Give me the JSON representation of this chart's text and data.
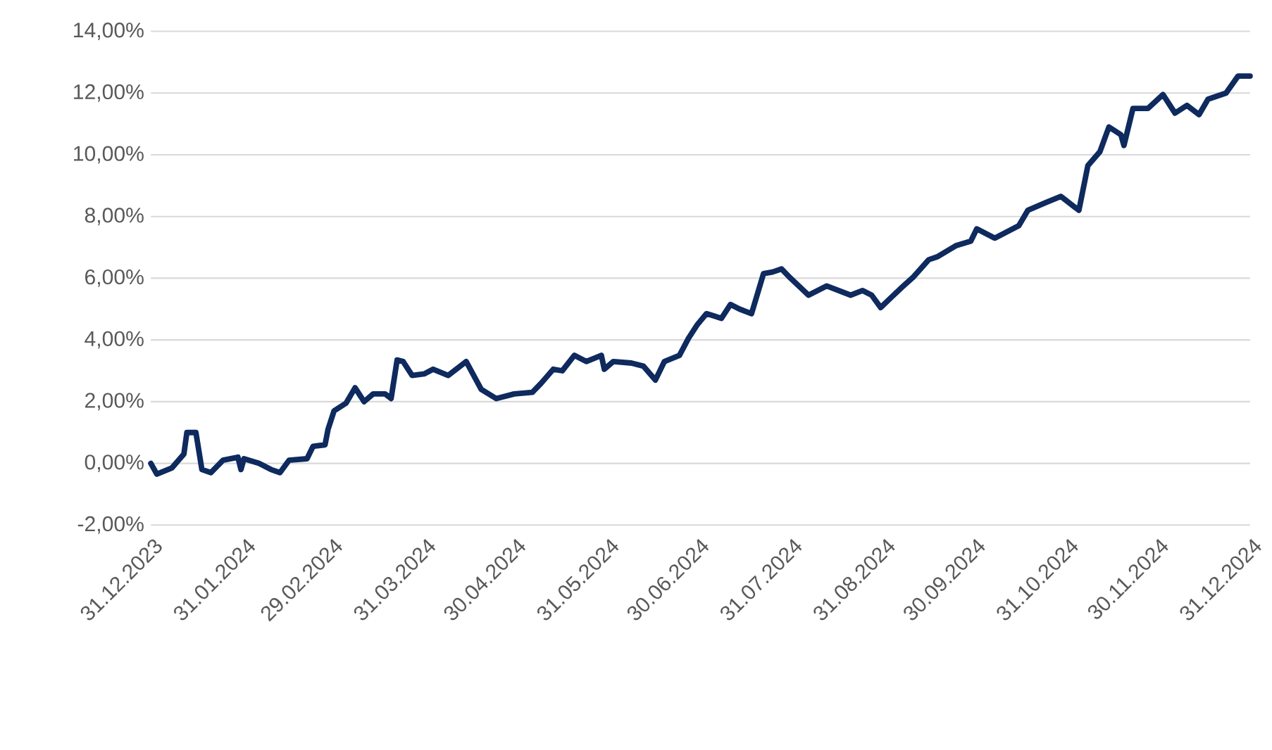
{
  "chart_data": {
    "type": "line",
    "grid": "y",
    "line_style": "solid",
    "marker": "none",
    "xlim": [
      "2023-12-31",
      "2024-12-31"
    ],
    "xticks": [
      {
        "value": "2023-12-31",
        "label": "31.12.2023"
      },
      {
        "value": "2024-01-31",
        "label": "31.01.2024"
      },
      {
        "value": "2024-02-29",
        "label": "29.02.2024"
      },
      {
        "value": "2024-03-31",
        "label": "31.03.2024"
      },
      {
        "value": "2024-04-30",
        "label": "30.04.2024"
      },
      {
        "value": "2024-05-31",
        "label": "31.05.2024"
      },
      {
        "value": "2024-06-30",
        "label": "30.06.2024"
      },
      {
        "value": "2024-07-31",
        "label": "31.07.2024"
      },
      {
        "value": "2024-08-31",
        "label": "31.08.2024"
      },
      {
        "value": "2024-09-30",
        "label": "30.09.2024"
      },
      {
        "value": "2024-10-31",
        "label": "31.10.2024"
      },
      {
        "value": "2024-11-30",
        "label": "30.11.2024"
      },
      {
        "value": "2024-12-31",
        "label": "31.12.2024"
      }
    ],
    "ylim": [
      -2,
      14
    ],
    "yticks": [
      {
        "value": -2,
        "label": "-2,00%"
      },
      {
        "value": 0,
        "label": "0,00%"
      },
      {
        "value": 2,
        "label": "2,00%"
      },
      {
        "value": 4,
        "label": "4,00%"
      },
      {
        "value": 6,
        "label": "6,00%"
      },
      {
        "value": 8,
        "label": "8,00%"
      },
      {
        "value": 10,
        "label": "10,00%"
      },
      {
        "value": 12,
        "label": "12,00%"
      },
      {
        "value": 14,
        "label": "14,00%"
      }
    ],
    "x": [
      "2023-12-31",
      "2024-01-02",
      "2024-01-07",
      "2024-01-11",
      "2024-01-12",
      "2024-01-15",
      "2024-01-17",
      "2024-01-20",
      "2024-01-24",
      "2024-01-29",
      "2024-01-30",
      "2024-01-31",
      "2024-02-05",
      "2024-02-09",
      "2024-02-12",
      "2024-02-15",
      "2024-02-21",
      "2024-02-23",
      "2024-02-27",
      "2024-02-28",
      "2024-03-01",
      "2024-03-05",
      "2024-03-08",
      "2024-03-11",
      "2024-03-14",
      "2024-03-18",
      "2024-03-20",
      "2024-03-22",
      "2024-03-24",
      "2024-03-27",
      "2024-03-31",
      "2024-04-03",
      "2024-04-08",
      "2024-04-14",
      "2024-04-19",
      "2024-04-24",
      "2024-04-30",
      "2024-05-06",
      "2024-05-09",
      "2024-05-13",
      "2024-05-16",
      "2024-05-20",
      "2024-05-24",
      "2024-05-29",
      "2024-05-30",
      "2024-06-02",
      "2024-06-08",
      "2024-06-12",
      "2024-06-16",
      "2024-06-19",
      "2024-06-24",
      "2024-06-27",
      "2024-06-30",
      "2024-07-03",
      "2024-07-08",
      "2024-07-11",
      "2024-07-14",
      "2024-07-18",
      "2024-07-22",
      "2024-07-25",
      "2024-07-28",
      "2024-07-31",
      "2024-08-06",
      "2024-08-12",
      "2024-08-20",
      "2024-08-24",
      "2024-08-27",
      "2024-08-30",
      "2024-09-06",
      "2024-09-10",
      "2024-09-15",
      "2024-09-18",
      "2024-09-24",
      "2024-09-29",
      "2024-10-01",
      "2024-10-07",
      "2024-10-15",
      "2024-10-18",
      "2024-10-24",
      "2024-10-29",
      "2024-11-04",
      "2024-11-07",
      "2024-11-11",
      "2024-11-14",
      "2024-11-18",
      "2024-11-19",
      "2024-11-22",
      "2024-11-27",
      "2024-12-02",
      "2024-12-06",
      "2024-12-10",
      "2024-12-14",
      "2024-12-17",
      "2024-12-23",
      "2024-12-27",
      "2024-12-31"
    ],
    "series": [
      {
        "color": "#0e2a5e",
        "values": [
          0,
          -0.35,
          -0.15,
          0.3,
          1.0,
          1.0,
          -0.2,
          -0.3,
          0.1,
          0.2,
          -0.2,
          0.15,
          0,
          -0.2,
          -0.3,
          0.1,
          0.15,
          0.55,
          0.6,
          1.1,
          1.7,
          1.95,
          2.45,
          2.0,
          2.25,
          2.25,
          2.1,
          3.35,
          3.3,
          2.85,
          2.9,
          3.05,
          2.85,
          3.3,
          2.4,
          2.1,
          2.25,
          2.3,
          2.6,
          3.05,
          3.0,
          3.5,
          3.3,
          3.5,
          3.05,
          3.3,
          3.25,
          3.15,
          2.7,
          3.3,
          3.5,
          4.05,
          4.5,
          4.85,
          4.7,
          5.15,
          5.0,
          4.85,
          6.15,
          6.2,
          6.3,
          6.0,
          5.45,
          5.75,
          5.45,
          5.6,
          5.45,
          5.05,
          5.7,
          6.05,
          6.6,
          6.7,
          7.05,
          7.2,
          7.6,
          7.3,
          7.7,
          8.2,
          8.45,
          8.65,
          8.2,
          9.65,
          10.1,
          10.9,
          10.65,
          10.3,
          11.5,
          11.5,
          11.95,
          11.35,
          11.6,
          11.3,
          11.8,
          12.0,
          12.55,
          12.55
        ]
      }
    ]
  }
}
